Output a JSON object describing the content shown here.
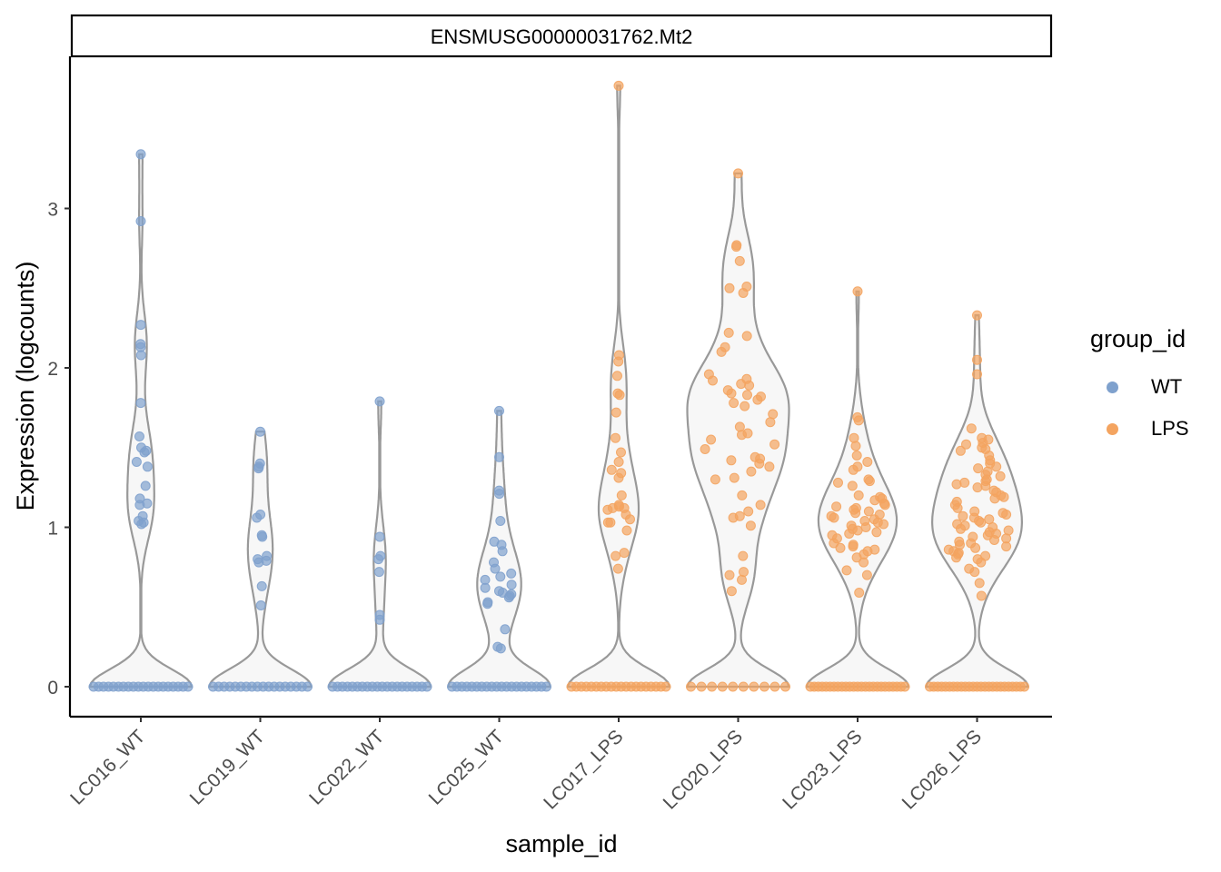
{
  "colors": {
    "WT": "#7fa1cd",
    "LPS": "#f4a460",
    "violin_fill": "#f7f7f7",
    "violin_stroke": "#999999"
  },
  "legend": {
    "title": "group_id",
    "items": [
      {
        "label": "WT",
        "color": "#7fa1cd"
      },
      {
        "label": "LPS",
        "color": "#f4a460"
      }
    ]
  },
  "chart_data": {
    "type": "violin",
    "facet_title": "ENSMUSG00000031762.Mt2",
    "xlabel": "sample_id",
    "ylabel": "Expression (logcounts)",
    "ylim": [
      -0.19,
      3.9
    ],
    "yticks": [
      0,
      1,
      2,
      3
    ],
    "grid": false,
    "legend_position": "right",
    "categories": [
      "LC016_WT",
      "LC019_WT",
      "LC022_WT",
      "LC025_WT",
      "LC017_LPS",
      "LC020_LPS",
      "LC023_LPS",
      "LC026_LPS"
    ],
    "samples": [
      {
        "name": "LC016_WT",
        "group": "WT",
        "max": 3.34,
        "zeros": 20,
        "points": [
          3.34,
          2.92,
          2.27,
          2.15,
          2.13,
          2.08,
          1.78,
          1.57,
          1.5,
          1.48,
          1.47,
          1.41,
          1.38,
          1.26,
          1.18,
          1.15,
          1.14,
          1.07,
          1.04,
          1.03,
          1.02
        ]
      },
      {
        "name": "LC019_WT",
        "group": "WT",
        "max": 1.6,
        "zeros": 18,
        "points": [
          1.6,
          1.4,
          1.38,
          1.37,
          1.08,
          1.06,
          0.95,
          0.94,
          0.82,
          0.8,
          0.79,
          0.78,
          0.63,
          0.51
        ]
      },
      {
        "name": "LC022_WT",
        "group": "WT",
        "max": 1.79,
        "zeros": 20,
        "points": [
          1.79,
          0.94,
          0.82,
          0.8,
          0.72,
          0.45,
          0.42
        ]
      },
      {
        "name": "LC025_WT",
        "group": "WT",
        "max": 1.73,
        "zeros": 20,
        "points": [
          1.73,
          1.44,
          1.23,
          1.21,
          1.04,
          0.91,
          0.89,
          0.85,
          0.78,
          0.74,
          0.71,
          0.69,
          0.67,
          0.64,
          0.62,
          0.6,
          0.59,
          0.58,
          0.57,
          0.56,
          0.53,
          0.52,
          0.36,
          0.25,
          0.24
        ]
      },
      {
        "name": "LC017_LPS",
        "group": "LPS",
        "max": 3.77,
        "zeros": 20,
        "points": [
          3.77,
          2.08,
          2.04,
          1.95,
          1.84,
          1.83,
          1.72,
          1.56,
          1.47,
          1.41,
          1.36,
          1.34,
          1.31,
          1.2,
          1.14,
          1.13,
          1.12,
          1.12,
          1.11,
          1.08,
          1.05,
          1.03,
          1.03,
          0.98,
          0.84,
          0.82,
          0.74
        ]
      },
      {
        "name": "LC020_LPS",
        "group": "LPS",
        "max": 3.22,
        "zeros": 10,
        "points": [
          3.22,
          2.77,
          2.76,
          2.67,
          2.51,
          2.5,
          2.47,
          2.22,
          2.2,
          2.13,
          2.1,
          1.96,
          1.93,
          1.92,
          1.9,
          1.89,
          1.86,
          1.84,
          1.83,
          1.82,
          1.8,
          1.78,
          1.76,
          1.71,
          1.66,
          1.63,
          1.59,
          1.58,
          1.55,
          1.52,
          1.49,
          1.44,
          1.43,
          1.42,
          1.4,
          1.38,
          1.35,
          1.31,
          1.3,
          1.2,
          1.14,
          1.1,
          1.07,
          1.06,
          1.01,
          0.82,
          0.72,
          0.7,
          0.67,
          0.6
        ]
      },
      {
        "name": "LC023_LPS",
        "group": "LPS",
        "max": 2.48,
        "zeros": 25,
        "points": [
          2.48,
          1.69,
          1.67,
          1.56,
          1.51,
          1.45,
          1.41,
          1.38,
          1.36,
          1.3,
          1.29,
          1.28,
          1.26,
          1.2,
          1.19,
          1.18,
          1.17,
          1.15,
          1.14,
          1.13,
          1.12,
          1.11,
          1.1,
          1.09,
          1.08,
          1.07,
          1.06,
          1.05,
          1.04,
          1.03,
          1.02,
          1.01,
          1.0,
          0.99,
          0.98,
          0.97,
          0.96,
          0.95,
          0.93,
          0.9,
          0.89,
          0.88,
          0.87,
          0.86,
          0.85,
          0.83,
          0.81,
          0.78,
          0.73,
          0.7,
          0.59
        ]
      },
      {
        "name": "LC026_LPS",
        "group": "LPS",
        "max": 2.33,
        "zeros": 25,
        "points": [
          2.33,
          2.05,
          1.96,
          1.62,
          1.56,
          1.55,
          1.53,
          1.52,
          1.5,
          1.49,
          1.48,
          1.45,
          1.42,
          1.4,
          1.38,
          1.37,
          1.35,
          1.33,
          1.32,
          1.3,
          1.29,
          1.28,
          1.27,
          1.26,
          1.25,
          1.23,
          1.22,
          1.2,
          1.19,
          1.18,
          1.16,
          1.14,
          1.12,
          1.1,
          1.09,
          1.08,
          1.07,
          1.06,
          1.05,
          1.04,
          1.03,
          1.02,
          1.01,
          1.0,
          0.99,
          0.98,
          0.97,
          0.96,
          0.95,
          0.94,
          0.93,
          0.92,
          0.91,
          0.9,
          0.89,
          0.88,
          0.87,
          0.86,
          0.85,
          0.84,
          0.83,
          0.82,
          0.81,
          0.8,
          0.78,
          0.74,
          0.72,
          0.65,
          0.57
        ]
      }
    ]
  }
}
